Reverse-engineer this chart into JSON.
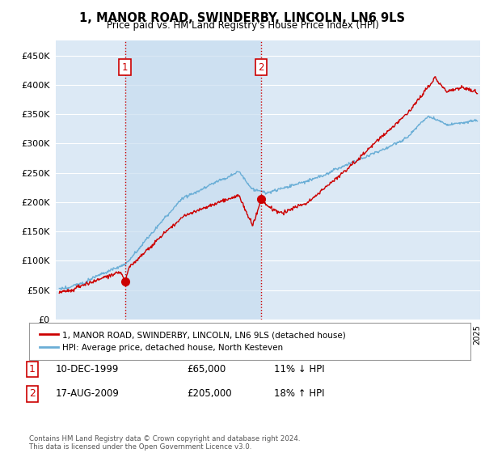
{
  "title": "1, MANOR ROAD, SWINDERBY, LINCOLN, LN6 9LS",
  "subtitle": "Price paid vs. HM Land Registry's House Price Index (HPI)",
  "ytick_values": [
    0,
    50000,
    100000,
    150000,
    200000,
    250000,
    300000,
    350000,
    400000,
    450000
  ],
  "ylim": [
    0,
    475000
  ],
  "xlim_start": 1995.3,
  "xlim_end": 2025.2,
  "background_color": "#ffffff",
  "plot_background": "#dce9f5",
  "grid_color": "#ffffff",
  "hpi_line_color": "#6aaed6",
  "price_line_color": "#cc0000",
  "shade_color": "#c8ddf0",
  "vline_color": "#cc0000",
  "t1_year": 1999.93,
  "t1_price": 65000,
  "t2_year": 2009.62,
  "t2_price": 205000,
  "legend_price_label": "1, MANOR ROAD, SWINDERBY, LINCOLN, LN6 9LS (detached house)",
  "legend_hpi_label": "HPI: Average price, detached house, North Kesteven",
  "footnote": "Contains HM Land Registry data © Crown copyright and database right 2024.\nThis data is licensed under the Open Government Licence v3.0.",
  "table_row1": [
    "1",
    "10-DEC-1999",
    "£65,000",
    "11% ↓ HPI"
  ],
  "table_row2": [
    "2",
    "17-AUG-2009",
    "£205,000",
    "18% ↑ HPI"
  ]
}
